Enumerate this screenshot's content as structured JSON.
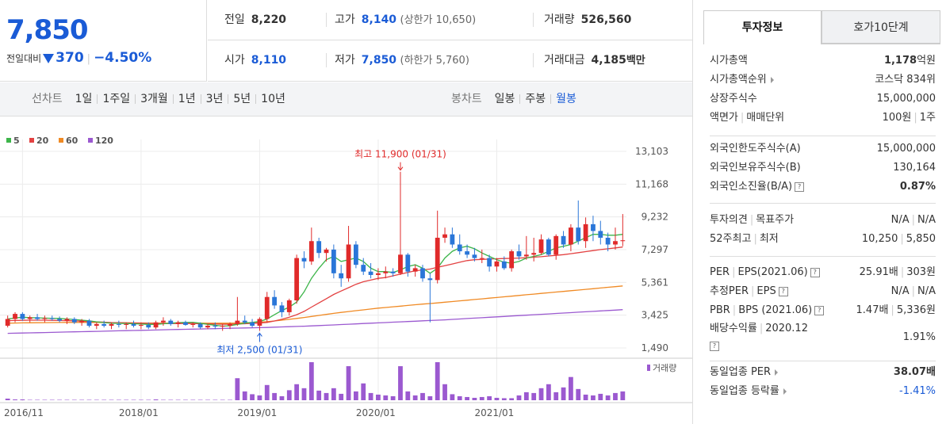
{
  "summary": {
    "price": "7,850",
    "diff_label": "전일대비",
    "diff_amount": "370",
    "diff_percent": "−4.50%",
    "prev_close_label": "전일",
    "prev_close": "8,220",
    "high_label": "고가",
    "high": "8,140",
    "upper_limit": "(상한가 10,650)",
    "volume_label": "거래량",
    "volume": "526,560",
    "open_label": "시가",
    "open": "8,110",
    "low_label": "저가",
    "low": "7,850",
    "lower_limit": "(하한가 5,760)",
    "amount_label": "거래대금",
    "amount": "4,185",
    "amount_unit": "백만"
  },
  "periodbar": {
    "line_label": "선차트",
    "line_items": [
      "1일",
      "1주일",
      "3개월",
      "1년",
      "3년",
      "5년",
      "10년"
    ],
    "candle_label": "봉차트",
    "candle_items": [
      "일봉",
      "주봉",
      "월봉"
    ],
    "candle_active": 2
  },
  "tabs": {
    "invest_info": "투자정보",
    "quote_10": "호가10단계"
  },
  "invest": {
    "s1": [
      {
        "k": "시가총액",
        "v": "1,178",
        "vu": "억원",
        "bold": true
      },
      {
        "k": "시가총액순위",
        "v": "코스닥 834위",
        "tri": true
      },
      {
        "k": "상장주식수",
        "v": "15,000,000"
      },
      {
        "k1": "액면가",
        "k2": "매매단위",
        "v1": "100원",
        "v2": "1주"
      }
    ],
    "s2": [
      {
        "k": "외국인한도주식수(A)",
        "v": "15,000,000"
      },
      {
        "k": "외국인보유주식수(B)",
        "v": "130,164"
      },
      {
        "k": "외국인소진율(B/A)",
        "v": "0.87%",
        "bold": true,
        "q": true
      }
    ],
    "s3": [
      {
        "k1": "투자의견",
        "k2": "목표주가",
        "v1": "N/A",
        "v2": "N/A"
      },
      {
        "k1": "52주최고",
        "k2": "최저",
        "v1": "10,250",
        "v2": "5,850"
      }
    ],
    "s4": [
      {
        "k1": "PER",
        "k2": "EPS(2021.06)",
        "v1": "25.91배",
        "v2": "303원",
        "q": true
      },
      {
        "k1": "추정PER",
        "k2": "EPS",
        "v1": "N/A",
        "v2": "N/A",
        "q": true
      },
      {
        "k1": "PBR",
        "k2": "BPS (2021.06)",
        "v1": "1.47배",
        "v2": "5,336원",
        "q": true
      },
      {
        "k1": "배당수익률",
        "k2": "2020.12",
        "v": "1.91%",
        "q": true
      }
    ],
    "s5": [
      {
        "k": "동일업종 PER",
        "v": "38.07배",
        "bold": true,
        "tri": true
      },
      {
        "k": "동일업종 등락률",
        "v": "-1.41%",
        "blue": true,
        "tri": true
      }
    ]
  },
  "chart_data": {
    "type": "candlestick",
    "legend": [
      {
        "name": "5",
        "color": "#3db54a"
      },
      {
        "name": "20",
        "color": "#e34141"
      },
      {
        "name": "60",
        "color": "#f08a24"
      },
      {
        "name": "120",
        "color": "#9b59d0"
      }
    ],
    "y_ticks": [
      "13,103",
      "11,168",
      "9,232",
      "7,297",
      "5,361",
      "3,425",
      "1,490"
    ],
    "ylim": [
      1490,
      13103
    ],
    "x_ticks": [
      "2016/11",
      "2018/01",
      "2019/01",
      "2020/01",
      "2021/01"
    ],
    "annotation_high": "최고 11,900 (01/31)",
    "annotation_low": "최저 2,500 (01/31)",
    "volume_label": "거래량",
    "up_color": "#e02a2a",
    "down_color": "#2a76d8",
    "candles": [
      [
        2800,
        3400,
        2700,
        3200
      ],
      [
        3200,
        3600,
        3000,
        3500
      ],
      [
        3500,
        3600,
        3100,
        3200
      ],
      [
        3200,
        3400,
        3000,
        3300
      ],
      [
        3300,
        3500,
        3100,
        3200
      ],
      [
        3200,
        3400,
        3000,
        3250
      ],
      [
        3250,
        3400,
        3100,
        3200
      ],
      [
        3200,
        3350,
        3000,
        3100
      ],
      [
        3100,
        3300,
        2900,
        3200
      ],
      [
        3200,
        3300,
        2900,
        3000
      ],
      [
        3000,
        3200,
        2800,
        3100
      ],
      [
        3100,
        3200,
        2700,
        2800
      ],
      [
        2800,
        3000,
        2600,
        2900
      ],
      [
        2900,
        3100,
        2700,
        2800
      ],
      [
        2800,
        3000,
        2600,
        2900
      ],
      [
        2900,
        3100,
        2700,
        2850
      ],
      [
        2850,
        3000,
        2600,
        2900
      ],
      [
        2900,
        3100,
        2700,
        2800
      ],
      [
        2800,
        3000,
        2600,
        2850
      ],
      [
        2850,
        3000,
        2600,
        2700
      ],
      [
        2700,
        3100,
        2600,
        3000
      ],
      [
        3000,
        3300,
        2800,
        3100
      ],
      [
        3100,
        3200,
        2800,
        2900
      ],
      [
        2900,
        3100,
        2700,
        3000
      ],
      [
        3000,
        3100,
        2800,
        2850
      ],
      [
        2850,
        3000,
        2700,
        2900
      ],
      [
        2900,
        3000,
        2600,
        2700
      ],
      [
        2700,
        2900,
        2600,
        2800
      ],
      [
        2800,
        3000,
        2600,
        2750
      ],
      [
        2750,
        2900,
        2500,
        2800
      ],
      [
        2800,
        3000,
        2600,
        2900
      ],
      [
        2900,
        4500,
        2800,
        3100
      ],
      [
        3100,
        3400,
        2900,
        3000
      ],
      [
        3000,
        3200,
        2700,
        2800
      ],
      [
        2800,
        3300,
        2500,
        3200
      ],
      [
        3200,
        4800,
        3000,
        4500
      ],
      [
        4500,
        4900,
        3800,
        4000
      ],
      [
        4000,
        4200,
        3300,
        3600
      ],
      [
        3600,
        4400,
        3400,
        4300
      ],
      [
        4300,
        7000,
        4100,
        6800
      ],
      [
        6800,
        7200,
        6200,
        6600
      ],
      [
        6600,
        8600,
        6400,
        7800
      ],
      [
        7800,
        8000,
        6800,
        7100
      ],
      [
        7100,
        7400,
        6600,
        7300
      ],
      [
        7300,
        7600,
        5600,
        5900
      ],
      [
        5900,
        6400,
        5100,
        5600
      ],
      [
        5600,
        8700,
        5400,
        7600
      ],
      [
        7600,
        7800,
        6200,
        6400
      ],
      [
        6400,
        6800,
        5800,
        6000
      ],
      [
        6000,
        6500,
        5600,
        5800
      ],
      [
        5800,
        6200,
        5500,
        5900
      ],
      [
        5900,
        6300,
        5600,
        6000
      ],
      [
        6000,
        6200,
        5700,
        5900
      ],
      [
        5900,
        11900,
        5800,
        7000
      ],
      [
        7000,
        7100,
        5700,
        6000
      ],
      [
        6000,
        6400,
        5700,
        6200
      ],
      [
        6200,
        6400,
        5400,
        5600
      ],
      [
        5600,
        5900,
        3000,
        5500
      ],
      [
        5500,
        9600,
        5300,
        8000
      ],
      [
        8000,
        8600,
        7700,
        8200
      ],
      [
        8200,
        8600,
        7400,
        7600
      ],
      [
        7600,
        8200,
        7000,
        7200
      ],
      [
        7200,
        7600,
        6800,
        7000
      ],
      [
        7000,
        7400,
        6600,
        6800
      ],
      [
        6800,
        7300,
        6500,
        6800
      ],
      [
        6800,
        7000,
        6000,
        6300
      ],
      [
        6300,
        6800,
        6000,
        6600
      ],
      [
        6600,
        6900,
        6100,
        6200
      ],
      [
        6200,
        7300,
        6000,
        7200
      ],
      [
        7200,
        7600,
        6700,
        6900
      ],
      [
        6900,
        8100,
        6700,
        7000
      ],
      [
        7000,
        8000,
        6600,
        7100
      ],
      [
        7100,
        8200,
        7000,
        7900
      ],
      [
        7900,
        8000,
        6900,
        7000
      ],
      [
        7000,
        8200,
        6700,
        8100
      ],
      [
        8100,
        8400,
        7400,
        7600
      ],
      [
        7600,
        8800,
        7200,
        8600
      ],
      [
        8600,
        10200,
        7600,
        7800
      ],
      [
        7800,
        9200,
        7400,
        8800
      ],
      [
        8800,
        9300,
        7800,
        8400
      ],
      [
        8400,
        9000,
        7600,
        8000
      ],
      [
        8000,
        8300,
        7200,
        7600
      ],
      [
        7600,
        8600,
        7300,
        7800
      ],
      [
        7800,
        9400,
        7500,
        7850
      ]
    ],
    "ma5": [
      3200,
      3260,
      3300,
      3280,
      3270,
      3250,
      3240,
      3230,
      3200,
      3170,
      3130,
      3090,
      3030,
      2990,
      2950,
      2940,
      2930,
      2920,
      2900,
      2880,
      2880,
      2920,
      2950,
      2980,
      3000,
      3000,
      2950,
      2880,
      2830,
      2780,
      2800,
      2880,
      2960,
      3000,
      3050,
      3200,
      3450,
      3700,
      3900,
      4200,
      4800,
      5600,
      6200,
      6700,
      6900,
      6600,
      6700,
      6800,
      6600,
      6200,
      6000,
      6000,
      5950,
      6100,
      6300,
      6400,
      6200,
      5900,
      6200,
      6800,
      7200,
      7400,
      7500,
      7350,
      7100,
      6900,
      6700,
      6550,
      6500,
      6600,
      6800,
      6900,
      7000,
      7200,
      7400,
      7500,
      7600,
      7800,
      8000,
      8200,
      8200,
      8150,
      8150,
      8200
    ],
    "ma20": [
      3100,
      3110,
      3120,
      3130,
      3130,
      3130,
      3120,
      3110,
      3100,
      3090,
      3070,
      3050,
      3030,
      3010,
      2990,
      2980,
      2970,
      2960,
      2950,
      2940,
      2930,
      2930,
      2930,
      2930,
      2930,
      2930,
      2920,
      2910,
      2900,
      2890,
      2890,
      2900,
      2920,
      2940,
      2960,
      3000,
      3080,
      3180,
      3300,
      3450,
      3650,
      3900,
      4150,
      4400,
      4650,
      4850,
      5050,
      5250,
      5400,
      5500,
      5600,
      5650,
      5750,
      5850,
      5950,
      6050,
      6100,
      6150,
      6250,
      6350,
      6450,
      6550,
      6650,
      6700,
      6720,
      6740,
      6760,
      6770,
      6780,
      6800,
      6820,
      6850,
      6880,
      6920,
      6960,
      7000,
      7060,
      7120,
      7180,
      7240,
      7300,
      7350,
      7400,
      7450
    ],
    "ma60": [
      2950,
      2960,
      2970,
      2975,
      2980,
      2985,
      2990,
      2995,
      3000,
      3000,
      3000,
      3000,
      2995,
      2990,
      2985,
      2980,
      2975,
      2970,
      2965,
      2960,
      2955,
      2950,
      2950,
      2950,
      2950,
      2950,
      2950,
      2950,
      2950,
      2950,
      2950,
      2960,
      2975,
      2990,
      3010,
      3040,
      3080,
      3130,
      3180,
      3230,
      3290,
      3350,
      3410,
      3470,
      3530,
      3590,
      3640,
      3690,
      3740,
      3790,
      3840,
      3880,
      3920,
      3960,
      4000,
      4040,
      4080,
      4110,
      4150,
      4190,
      4230,
      4270,
      4310,
      4350,
      4390,
      4430,
      4470,
      4510,
      4550,
      4590,
      4630,
      4670,
      4710,
      4750,
      4790,
      4830,
      4870,
      4910,
      4950,
      4990,
      5030,
      5070,
      5110,
      5150
    ],
    "ma120": [
      2350,
      2360,
      2370,
      2380,
      2390,
      2400,
      2410,
      2420,
      2430,
      2440,
      2450,
      2460,
      2470,
      2480,
      2490,
      2500,
      2510,
      2520,
      2530,
      2540,
      2550,
      2560,
      2570,
      2580,
      2590,
      2600,
      2610,
      2620,
      2630,
      2640,
      2650,
      2660,
      2670,
      2680,
      2690,
      2700,
      2715,
      2730,
      2745,
      2760,
      2775,
      2790,
      2810,
      2830,
      2850,
      2870,
      2890,
      2910,
      2930,
      2950,
      2970,
      2990,
      3010,
      3030,
      3050,
      3070,
      3090,
      3110,
      3130,
      3150,
      3175,
      3200,
      3225,
      3250,
      3275,
      3300,
      3325,
      3350,
      3375,
      3400,
      3425,
      3450,
      3475,
      3500,
      3525,
      3550,
      3575,
      3600,
      3625,
      3650,
      3675,
      3700,
      3725,
      3750
    ],
    "volume": [
      4,
      2,
      2,
      1,
      1,
      1,
      1,
      1,
      1,
      1,
      1,
      1,
      1,
      1,
      1,
      1,
      1,
      1,
      1,
      1,
      2,
      1,
      1,
      1,
      1,
      1,
      1,
      1,
      1,
      1,
      1,
      55,
      22,
      15,
      12,
      38,
      18,
      10,
      25,
      40,
      30,
      95,
      24,
      18,
      30,
      16,
      85,
      22,
      42,
      18,
      14,
      12,
      10,
      85,
      22,
      12,
      18,
      10,
      95,
      40,
      15,
      10,
      8,
      6,
      8,
      10,
      6,
      5,
      5,
      12,
      20,
      18,
      30,
      40,
      20,
      32,
      58,
      28,
      14,
      12,
      16,
      12,
      18,
      22
    ]
  }
}
